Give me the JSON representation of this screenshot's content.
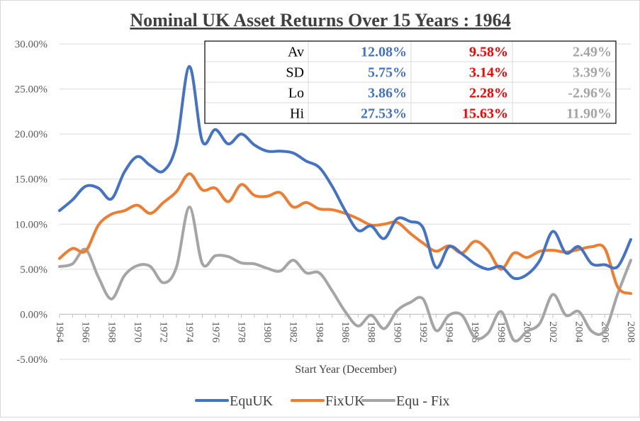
{
  "chart_data": {
    "type": "line",
    "title": "Nominal UK Asset Returns Over 15 Years : 1964",
    "xlabel": "Start Year (December)",
    "ylabel": "",
    "x_tick_labels": [
      "1964",
      "1966",
      "1968",
      "1970",
      "1972",
      "1974",
      "1976",
      "1978",
      "1980",
      "1982",
      "1984",
      "1986",
      "1988",
      "1990",
      "1992",
      "1994",
      "1996",
      "1998",
      "2000",
      "2002",
      "2004",
      "2006",
      "2008"
    ],
    "y_tick_labels": [
      "30.00%",
      "25.00%",
      "20.00%",
      "15.00%",
      "10.00%",
      "5.00%",
      "0.00%",
      "-5.00%"
    ],
    "xlim": [
      1964,
      2008
    ],
    "ylim": [
      -5,
      30
    ],
    "grid": "horizontal",
    "legend_position": "bottom",
    "x": [
      1964,
      1965,
      1966,
      1967,
      1968,
      1969,
      1970,
      1971,
      1972,
      1973,
      1974,
      1975,
      1976,
      1977,
      1978,
      1979,
      1980,
      1981,
      1982,
      1983,
      1984,
      1985,
      1986,
      1987,
      1988,
      1989,
      1990,
      1991,
      1992,
      1993,
      1994,
      1995,
      1996,
      1997,
      1998,
      1999,
      2000,
      2001,
      2002,
      2003,
      2004,
      2005,
      2006,
      2007,
      2008
    ],
    "series": [
      {
        "name": "EquUK",
        "color": "#4472c4",
        "values": [
          11.5,
          12.7,
          14.2,
          14.0,
          12.8,
          15.8,
          17.5,
          16.5,
          15.9,
          18.8,
          27.5,
          19.2,
          20.5,
          18.9,
          20.0,
          18.8,
          18.1,
          18.1,
          17.9,
          17.0,
          16.3,
          14.2,
          11.5,
          9.3,
          9.8,
          8.4,
          10.6,
          10.3,
          9.6,
          5.2,
          7.5,
          6.7,
          5.6,
          5.0,
          5.3,
          4.0,
          4.4,
          6.0,
          9.2,
          6.8,
          7.5,
          5.6,
          5.5,
          5.3,
          8.3
        ]
      },
      {
        "name": "FixUK",
        "color": "#ed7d31",
        "values": [
          6.2,
          7.3,
          7.0,
          9.9,
          11.1,
          11.5,
          12.1,
          11.2,
          12.4,
          13.6,
          15.6,
          13.8,
          14.0,
          12.5,
          14.4,
          13.2,
          13.1,
          13.5,
          11.9,
          12.4,
          11.7,
          11.6,
          11.2,
          10.6,
          9.9,
          10.0,
          10.2,
          9.0,
          7.9,
          7.0,
          7.6,
          6.8,
          8.1,
          7.1,
          5.0,
          6.8,
          6.3,
          7.0,
          7.1,
          6.9,
          7.2,
          7.5,
          7.3,
          3.0,
          2.3
        ]
      },
      {
        "name": "Equ - Fix",
        "color": "#a5a5a5",
        "values": [
          5.3,
          5.6,
          7.2,
          4.1,
          1.7,
          4.3,
          5.4,
          5.3,
          3.5,
          5.2,
          11.9,
          5.6,
          6.5,
          6.4,
          5.7,
          5.6,
          5.1,
          4.8,
          6.0,
          4.6,
          4.6,
          2.6,
          0.3,
          -1.3,
          -0.1,
          -1.6,
          0.4,
          1.3,
          1.7,
          -1.8,
          -0.1,
          -0.1,
          -2.6,
          -2.1,
          0.3,
          -2.9,
          -1.9,
          -1.0,
          2.2,
          -0.1,
          0.3,
          -1.9,
          -1.8,
          2.3,
          6.0
        ]
      }
    ],
    "stats_table": {
      "rows": [
        {
          "label": "Av",
          "equ": "12.08%",
          "fix": "9.58%",
          "diff": "2.49%"
        },
        {
          "label": "SD",
          "equ": "5.75%",
          "fix": "3.14%",
          "diff": "3.39%"
        },
        {
          "label": "Lo",
          "equ": "3.86%",
          "fix": "2.28%",
          "diff": "-2.96%"
        },
        {
          "label": "Hi",
          "equ": "27.53%",
          "fix": "15.63%",
          "diff": "11.90%"
        }
      ],
      "colors": {
        "equ": "#4472c4",
        "fix": "#ff0000",
        "diff": "#a5a5a5",
        "label": "#000000"
      }
    }
  }
}
